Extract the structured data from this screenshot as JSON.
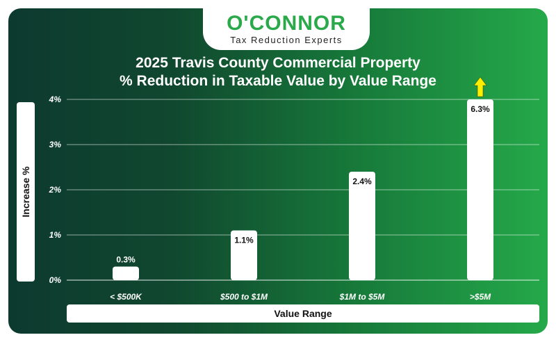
{
  "brand": {
    "name": "O'CONNOR",
    "tagline": "Tax Reduction Experts"
  },
  "colors": {
    "accent": "#2aa94a",
    "bar": "#ffffff",
    "arrow": "#ffee00",
    "gradient_start": "#0d3a2f",
    "gradient_end": "#25a94a"
  },
  "chart_data": {
    "type": "bar",
    "title_line1": "2025 Travis County Commercial Property",
    "title_line2": "% Reduction in Taxable Value by Value Range",
    "xlabel": "Value Range",
    "ylabel": "Increase %",
    "categories": [
      "< $500K",
      "$500 to $1M",
      "$1M to $5M",
      ">$5M"
    ],
    "values": [
      0.3,
      1.1,
      2.4,
      6.3
    ],
    "data_labels": [
      "0.3%",
      "1.1%",
      "2.4%",
      "6.3%"
    ],
    "ylim": [
      0,
      4
    ],
    "yticks": [
      "0%",
      "1%",
      "2%",
      "3%",
      "4%"
    ],
    "grid": true,
    "overflow_indicator": "arrow-up"
  }
}
